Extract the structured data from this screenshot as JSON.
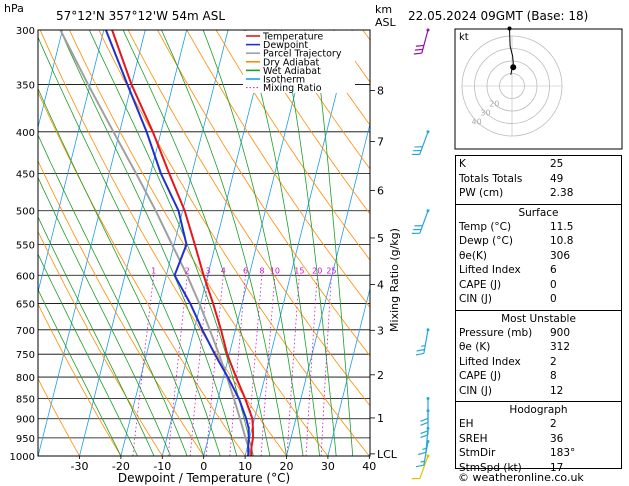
{
  "header": {
    "hpa_label": "hPa",
    "location": "57°12'N  357°12'W  54m  ASL",
    "km_label": "km",
    "asl_label": "ASL",
    "datetime": "22.05.2024  09GMT  (Base: 18)"
  },
  "colors": {
    "temperature": "#e8151a",
    "dewpoint": "#2030d0",
    "parcel": "#a0a0a0",
    "dry_adiabat": "#ff8c00",
    "wet_adiabat": "#1e9e28",
    "isotherm": "#1e9ee8",
    "mixing_ratio": "#d010c8",
    "wind": "#26a8d8",
    "wind_low": "#e0c000",
    "wind_top": "#9010b0"
  },
  "legend": [
    {
      "label": "Temperature",
      "color": "#e8151a",
      "style": "solid"
    },
    {
      "label": "Dewpoint",
      "color": "#2030d0",
      "style": "solid"
    },
    {
      "label": "Parcel Trajectory",
      "color": "#a0a0a0",
      "style": "solid"
    },
    {
      "label": "Dry Adiabat",
      "color": "#ff8c00",
      "style": "solid"
    },
    {
      "label": "Wet Adiabat",
      "color": "#1e9e28",
      "style": "solid"
    },
    {
      "label": "Isotherm",
      "color": "#1e9ee8",
      "style": "solid"
    },
    {
      "label": "Mixing Ratio",
      "color": "#d010c8",
      "style": "dotted"
    }
  ],
  "chart_data": {
    "type": "line",
    "xlabel": "Dewpoint / Temperature (°C)",
    "ylabel": "hPa",
    "right_label": "Mixing Ratio (g/kg)",
    "xlim": [
      -35,
      40
    ],
    "ylim": [
      1000,
      300
    ],
    "log_scale_y": true,
    "x_ticks": [
      -30,
      -20,
      -10,
      0,
      10,
      20,
      30,
      40
    ],
    "pressure_ticks": [
      300,
      350,
      400,
      450,
      500,
      550,
      600,
      650,
      700,
      750,
      800,
      850,
      900,
      950,
      1000
    ],
    "km_ticks": [
      {
        "label": "8",
        "p": 356
      },
      {
        "label": "7",
        "p": 411
      },
      {
        "label": "6",
        "p": 472
      },
      {
        "label": "5",
        "p": 540
      },
      {
        "label": "4",
        "p": 616
      },
      {
        "label": "3",
        "p": 701
      },
      {
        "label": "2",
        "p": 795
      },
      {
        "label": "1",
        "p": 898
      },
      {
        "label": "LCL",
        "p": 994
      }
    ],
    "mixing_ratio_labels": [
      "1",
      "2",
      "3",
      "4",
      "6",
      "8",
      "10",
      "15",
      "20",
      "25"
    ],
    "mixing_ratio_values": [
      1,
      2,
      3,
      4,
      6,
      8,
      10,
      15,
      20,
      25
    ],
    "series": [
      {
        "name": "Temperature",
        "p": [
          1000,
          975,
          950,
          925,
          900,
          850,
          800,
          750,
          700,
          650,
          600,
          550,
          500,
          450,
          400,
          350,
          300
        ],
        "t": [
          11.5,
          11.0,
          10.8,
          10.2,
          9.5,
          6.5,
          3.0,
          -0.5,
          -3.5,
          -7.0,
          -11.0,
          -15.0,
          -19.5,
          -25.5,
          -32.0,
          -40.0,
          -48.0
        ]
      },
      {
        "name": "Dewpoint",
        "p": [
          1000,
          975,
          950,
          925,
          900,
          850,
          800,
          750,
          700,
          650,
          600,
          550,
          500,
          450,
          400,
          350,
          300
        ],
        "t": [
          10.8,
          10.2,
          9.8,
          9.2,
          8.0,
          5.0,
          1.0,
          -3.5,
          -8.0,
          -12.5,
          -18.0,
          -17.0,
          -21.0,
          -27.5,
          -33.5,
          -41.0,
          -49.5
        ]
      },
      {
        "name": "Parcel Trajectory",
        "p": [
          1000,
          950,
          900,
          850,
          800,
          750,
          700,
          650,
          600,
          550,
          500,
          450,
          400,
          350,
          300
        ],
        "t": [
          11.5,
          9.0,
          6.5,
          3.8,
          0.8,
          -2.5,
          -6.2,
          -10.3,
          -15.0,
          -20.5,
          -26.5,
          -33.5,
          -41.5,
          -50.5,
          -60.5
        ]
      }
    ],
    "wind_barbs": [
      {
        "p": 1000,
        "dir": 200,
        "kt": 10
      },
      {
        "p": 960,
        "dir": 190,
        "kt": 15
      },
      {
        "p": 925,
        "dir": 185,
        "kt": 15
      },
      {
        "p": 880,
        "dir": 180,
        "kt": 20
      },
      {
        "p": 850,
        "dir": 180,
        "kt": 20
      },
      {
        "p": 700,
        "dir": 190,
        "kt": 25
      },
      {
        "p": 500,
        "dir": 200,
        "kt": 30
      },
      {
        "p": 400,
        "dir": 200,
        "kt": 30
      },
      {
        "p": 300,
        "dir": 195,
        "kt": 30
      }
    ]
  },
  "hodograph": {
    "unit_label": "kt",
    "ring_labels": [
      "40",
      "30",
      "20"
    ],
    "trace_kt": [
      [
        -1,
        9
      ],
      [
        0,
        14
      ],
      [
        1,
        18
      ],
      [
        0.5,
        24
      ],
      [
        -1.5,
        32
      ],
      [
        -2,
        46
      ]
    ]
  },
  "indices": [
    {
      "key": "K",
      "value": "25"
    },
    {
      "key": "Totals Totals",
      "value": "49"
    },
    {
      "key": "PW (cm)",
      "value": "2.38"
    }
  ],
  "surface": {
    "title": "Surface",
    "rows": [
      {
        "key": "Temp (°C)",
        "value": "11.5"
      },
      {
        "key": "Dewp (°C)",
        "value": "10.8"
      },
      {
        "key": "θe(K)",
        "value": "306"
      },
      {
        "key": "Lifted Index",
        "value": "6"
      },
      {
        "key": "CAPE (J)",
        "value": "0"
      },
      {
        "key": "CIN (J)",
        "value": "0"
      }
    ]
  },
  "most_unstable": {
    "title": "Most Unstable",
    "rows": [
      {
        "key": "Pressure (mb)",
        "value": "900"
      },
      {
        "key": "θe (K)",
        "value": "312"
      },
      {
        "key": "Lifted Index",
        "value": "2"
      },
      {
        "key": "CAPE (J)",
        "value": "8"
      },
      {
        "key": "CIN (J)",
        "value": "12"
      }
    ]
  },
  "hodograph_table": {
    "title": "Hodograph",
    "rows": [
      {
        "key": "EH",
        "value": "2"
      },
      {
        "key": "SREH",
        "value": "36"
      },
      {
        "key": "StmDir",
        "value": "183°"
      },
      {
        "key": "StmSpd (kt)",
        "value": "17"
      }
    ]
  },
  "credit": "© weatheronline.co.uk"
}
